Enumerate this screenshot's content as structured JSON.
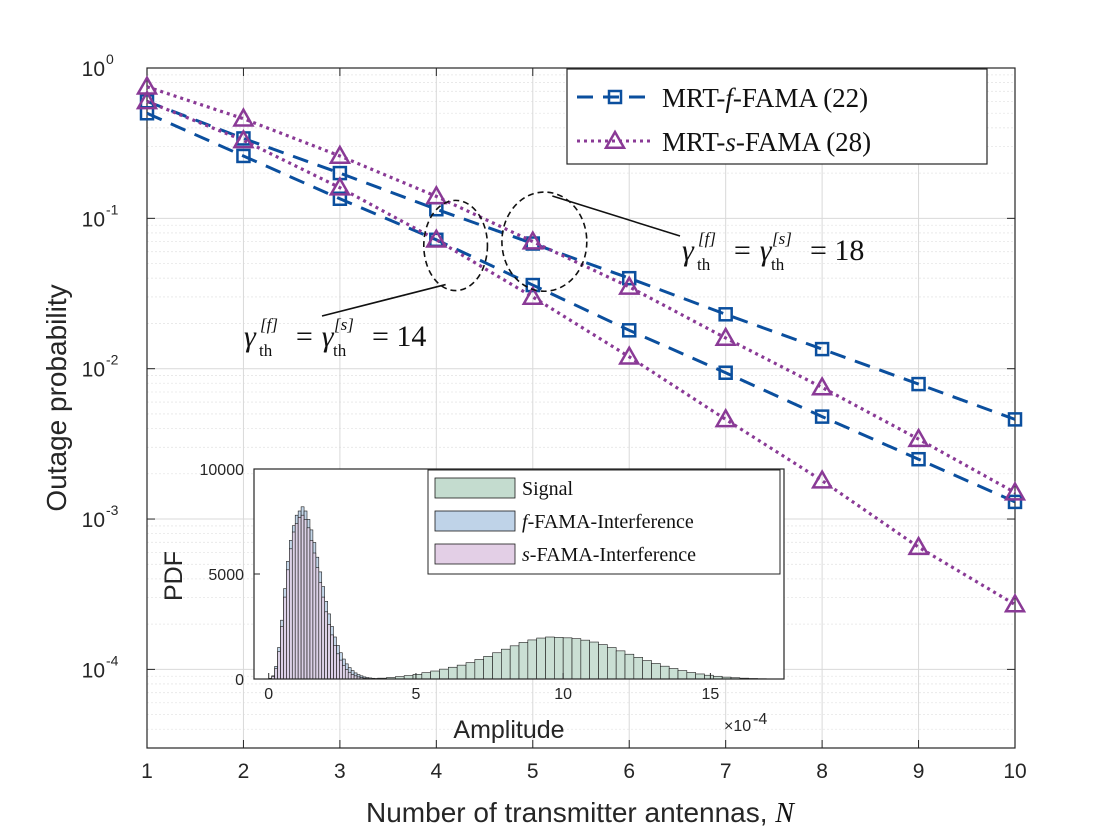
{
  "chart_data": [
    {
      "type": "line",
      "title": "",
      "xlabel": "Number of transmitter antennas, ",
      "xlabel_var": "N",
      "ylabel": "Outage probability",
      "yscale": "log",
      "xlim": [
        1,
        10
      ],
      "ylim": [
        3e-05,
        1
      ],
      "grid": true,
      "legend_position": "top-right",
      "x": [
        1,
        2,
        3,
        4,
        5,
        6,
        7,
        8,
        9,
        10
      ],
      "x_tick_labels": [
        "1",
        "2",
        "3",
        "4",
        "5",
        "6",
        "7",
        "8",
        "9",
        "10"
      ],
      "y_ticks": [
        {
          "value": 1,
          "base": "10",
          "exp": "0"
        },
        {
          "value": 0.1,
          "base": "10",
          "exp": "-1"
        },
        {
          "value": 0.01,
          "base": "10",
          "exp": "-2"
        },
        {
          "value": 0.001,
          "base": "10",
          "exp": "-3"
        },
        {
          "value": 0.0001,
          "base": "10",
          "exp": "-4"
        }
      ],
      "series": [
        {
          "name": "MRT-f-FAMA (22)",
          "label_prefix": "MRT-",
          "label_var": "f",
          "label_suffix": "-FAMA (22)",
          "group": "f",
          "threshold": 18,
          "color": "#0b4f9e",
          "marker": "square",
          "dash": "16,10",
          "values": [
            0.6,
            0.34,
            0.2,
            0.115,
            0.068,
            0.04,
            0.023,
            0.0135,
            0.0079,
            0.0046
          ]
        },
        {
          "name": "MRT-f-FAMA (22)",
          "group": "f",
          "threshold": 14,
          "color": "#0b4f9e",
          "marker": "square",
          "dash": "16,10",
          "values": [
            0.5,
            0.26,
            0.135,
            0.072,
            0.036,
            0.018,
            0.0094,
            0.0048,
            0.0025,
            0.0013
          ]
        },
        {
          "name": "MRT-s-FAMA (28)",
          "label_prefix": "MRT-",
          "label_var": "s",
          "label_suffix": "-FAMA (28)",
          "group": "s",
          "threshold": 18,
          "color": "#8a3a96",
          "marker": "triangle",
          "dash": "3,4",
          "values": [
            0.75,
            0.46,
            0.26,
            0.14,
            0.07,
            0.035,
            0.016,
            0.0075,
            0.0034,
            0.0015
          ]
        },
        {
          "name": "MRT-s-FAMA (28)",
          "group": "s",
          "threshold": 14,
          "color": "#8a3a96",
          "marker": "triangle",
          "dash": "3,4",
          "values": [
            0.6,
            0.33,
            0.16,
            0.072,
            0.03,
            0.012,
            0.0046,
            0.0018,
            0.00065,
            0.00027
          ]
        }
      ],
      "annotations": [
        {
          "text_base": "γ",
          "text_sub": "th",
          "text_sup": "[f]",
          "text_eq": "= γ",
          "text_sub2": "th",
          "text_sup2": "[s]",
          "text_eq2": "= 18",
          "circle_center": [
            5.12,
            0.07
          ],
          "circle_radius_x": 0.44,
          "circle_radius_y_decades": 0.33
        },
        {
          "text_base": "γ",
          "text_sub": "th",
          "text_sup": "[f]",
          "text_eq": "= γ",
          "text_sub2": "th",
          "text_sup2": "[s]",
          "text_eq2": "= 14",
          "circle_center": [
            4.2,
            0.066
          ],
          "circle_radius_x": 0.33,
          "circle_radius_y_decades": 0.3
        }
      ]
    },
    {
      "type": "bar",
      "subtype": "histogram",
      "xlabel": "Amplitude",
      "ylabel": "PDF",
      "x_scale_label_base": "×10",
      "x_scale_label_exp": "-4",
      "xlim": [
        -0.5,
        17.5
      ],
      "ylim": [
        0,
        10000
      ],
      "x_ticks": [
        0,
        5,
        10,
        15
      ],
      "y_ticks": [
        0,
        5000,
        10000
      ],
      "bin_width": 0.3,
      "series": [
        {
          "name": "Signal",
          "label": "Signal",
          "color": "#c4dccf",
          "bins_start": [
            3.1,
            3.4,
            3.7,
            4.0,
            4.3,
            4.6,
            4.9,
            5.2,
            5.5,
            5.8,
            6.1,
            6.4,
            6.7,
            7.0,
            7.3,
            7.6,
            7.9,
            8.2,
            8.5,
            8.8,
            9.1,
            9.4,
            9.7,
            10.0,
            10.3,
            10.6,
            10.9,
            11.2,
            11.5,
            11.8,
            12.1,
            12.4,
            12.7,
            13.0,
            13.3,
            13.6,
            13.9,
            14.2,
            14.5,
            14.8,
            15.1,
            15.4,
            15.7,
            16.0,
            16.3,
            16.6
          ],
          "values": [
            10,
            20,
            40,
            70,
            110,
            160,
            220,
            300,
            380,
            470,
            560,
            660,
            780,
            930,
            1080,
            1250,
            1420,
            1580,
            1740,
            1860,
            1950,
            2000,
            1980,
            1960,
            1920,
            1850,
            1760,
            1640,
            1500,
            1340,
            1180,
            1030,
            880,
            740,
            610,
            500,
            400,
            310,
            240,
            180,
            130,
            90,
            60,
            40,
            25,
            15
          ]
        },
        {
          "name": "f-FAMA-Interference",
          "label_var": "f",
          "label_suffix": "-FAMA-Interference",
          "color": "#bfd3e8",
          "bins_start": [
            0.0,
            0.1,
            0.2,
            0.3,
            0.4,
            0.5,
            0.6,
            0.7,
            0.8,
            0.9,
            1.0,
            1.1,
            1.2,
            1.3,
            1.4,
            1.5,
            1.6,
            1.7,
            1.8,
            1.9,
            2.0,
            2.1,
            2.2,
            2.3,
            2.4,
            2.5,
            2.6,
            2.7,
            2.8,
            2.9,
            3.0,
            3.1,
            3.2,
            3.3,
            3.4,
            3.5,
            3.6,
            3.7,
            3.8,
            3.9,
            4.0,
            4.1,
            4.2,
            4.3,
            4.4
          ],
          "values": [
            30,
            150,
            600,
            1500,
            2800,
            4300,
            5600,
            6600,
            7300,
            7800,
            8000,
            8200,
            8000,
            7600,
            7100,
            6500,
            5800,
            5100,
            4400,
            3700,
            3100,
            2500,
            2000,
            1600,
            1250,
            950,
            720,
            540,
            400,
            290,
            210,
            150,
            100,
            70,
            50,
            35,
            22,
            14,
            9,
            6,
            4,
            3,
            2,
            1,
            1
          ]
        },
        {
          "name": "s-FAMA-Interference",
          "label_var": "s",
          "label_suffix": "-FAMA-Interference",
          "color": "#e3cfe6",
          "bins_start": [
            0.0,
            0.1,
            0.2,
            0.3,
            0.4,
            0.5,
            0.6,
            0.7,
            0.8,
            0.9,
            1.0,
            1.1,
            1.2,
            1.3,
            1.4,
            1.5,
            1.6,
            1.7,
            1.8,
            1.9,
            2.0,
            2.1,
            2.2,
            2.3,
            2.4,
            2.5,
            2.6,
            2.7,
            2.8,
            2.9,
            3.0,
            3.1,
            3.2,
            3.3,
            3.4,
            3.5,
            3.6,
            3.7,
            3.8,
            3.9,
            4.0
          ],
          "values": [
            20,
            120,
            500,
            1300,
            2500,
            3900,
            5200,
            6200,
            7000,
            7400,
            7700,
            7800,
            7600,
            7200,
            6600,
            6000,
            5300,
            4600,
            3900,
            3200,
            2600,
            2100,
            1600,
            1200,
            900,
            650,
            460,
            320,
            220,
            150,
            100,
            65,
            42,
            27,
            17,
            11,
            7,
            4,
            3,
            2,
            1
          ]
        }
      ]
    }
  ]
}
